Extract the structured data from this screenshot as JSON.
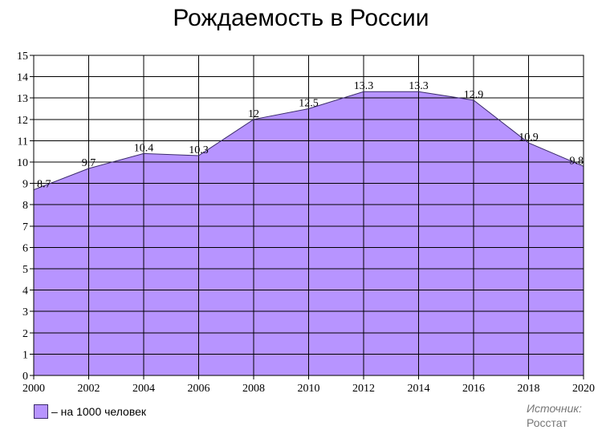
{
  "chart_data": {
    "type": "area",
    "title": "Рождаемость в России",
    "x": [
      "2000",
      "2002",
      "2004",
      "2006",
      "2008",
      "2010",
      "2012",
      "2014",
      "2016",
      "2018",
      "2020"
    ],
    "series": [
      {
        "name": "– на 1000 человек",
        "values": [
          8.7,
          9.7,
          10.4,
          10.3,
          12,
          12.5,
          13.3,
          13.3,
          12.9,
          10.9,
          9.8
        ]
      }
    ],
    "data_labels": [
      "8.7",
      "9.7",
      "10.4",
      "10.3",
      "12",
      "12.5",
      "13.3",
      "13.3",
      "12.9",
      "10.9",
      "9.8"
    ],
    "ylim": [
      0,
      15
    ],
    "yticks": [
      "0",
      "1",
      "2",
      "3",
      "4",
      "5",
      "6",
      "7",
      "8",
      "9",
      "10",
      "11",
      "12",
      "13",
      "14",
      "15"
    ],
    "grid": true,
    "legend_position": "bottom-left",
    "fill_color": "#b794ff",
    "line_color": "#3a2a6a",
    "grid_color": "#000000"
  },
  "source": {
    "label": "Источник:",
    "value": "Росстат"
  }
}
